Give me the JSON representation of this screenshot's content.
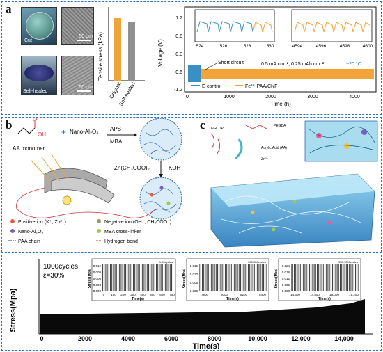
{
  "panel_a": {
    "letter": "a",
    "photo_cut_label": "Cut",
    "photo_healed_label": "Self-healed",
    "sem_scale_1": "50 μm",
    "sem_scale_2": "50 μm",
    "bar_chart": {
      "ylabel": "Tensile stress (kPa)",
      "categories": [
        "Original",
        "Self-healed"
      ],
      "values": [
        45,
        42
      ],
      "colors": [
        "#f2a33a",
        "#909090"
      ]
    },
    "voltage_chart": {
      "ylabel": "Voltage (V)",
      "xlabel": "Time (h)",
      "yticks": [
        "-1.2",
        "-0.6",
        "0.0",
        "0.6",
        "1.2"
      ],
      "xticks": [
        "0",
        "1000",
        "2000",
        "3000",
        "4000"
      ],
      "inset1_xticks": [
        "524",
        "526",
        "528",
        "530"
      ],
      "inset2_xticks": [
        "4594",
        "4596",
        "4598",
        "4600"
      ],
      "annotation_short": "Short circuit",
      "annotation_cond": "0.5 mA cm⁻², 0.25 mAh cm⁻²",
      "annotation_temp": "−20 °C",
      "legend_econtrol": "E-control",
      "legend_fe": "Fe³⁺-PAA/CNF",
      "color_econtrol": "#3a8fc4",
      "color_fe": "#f2a33a"
    }
  },
  "panel_b": {
    "letter": "b",
    "monomer_label": "AA monomer",
    "nano_label": "Nano-Al₂O₃",
    "aps_label": "APS",
    "mba_label": "MBA",
    "zn_label": "Zn(CH₃COO)₂",
    "koh_label": "KOH",
    "plus": "+",
    "legend_positive": "Positive ion (K⁺, Zn²⁺)",
    "legend_negative": "Negative ion (OH⁻, CH₃COO⁻)",
    "legend_nano": "Nano-Al₂O₃",
    "legend_mba": "MBA cross-linker",
    "legend_paa": "PAA chain",
    "legend_hbond": "Hydrogen bond"
  },
  "panel_c": {
    "letter": "c",
    "label_egcdp": "EGCDP",
    "label_pegda": "PEGDA",
    "label_acrylic": "Acrylic Acid (AA)",
    "label_zn": "Zn²⁺"
  },
  "panel_d": {
    "cycles_label": "1000cycles",
    "strain_label": "ε=30%",
    "ylabel": "Stress(Mpa)",
    "xlabel": "Time(s)",
    "xticks": [
      "0",
      "2000",
      "4000",
      "6000",
      "8000",
      "10,000",
      "12,000",
      "14,000"
    ],
    "inset1": {
      "title": "1-50cycles",
      "ylabel": "Stress(Mpa)",
      "xlabel": "Time(s)",
      "yticks": [
        "0.000",
        "0.003",
        "0.006",
        "0.009",
        "0.012"
      ],
      "xticks": [
        "0",
        "100",
        "200",
        "300",
        "400",
        "500",
        "600",
        "700"
      ]
    },
    "inset2": {
      "title": "500-550cycles",
      "ylabel": "Stress(Mpa)",
      "xlabel": "Time(s)",
      "yticks": [
        "0.000",
        "0.005",
        "0.010",
        "0.015"
      ],
      "xticks": [
        "7800",
        "8000",
        "8200",
        "8400"
      ]
    },
    "inset3": {
      "title": "950-1000cycles",
      "ylabel": "Stress(Mpa)",
      "xlabel": "Time(s)",
      "yticks": [
        "0.000",
        "0.006",
        "0.012",
        "0.018",
        "0.024"
      ],
      "xticks": [
        "14,600",
        "14,800",
        "15,000",
        "15,200"
      ]
    }
  }
}
